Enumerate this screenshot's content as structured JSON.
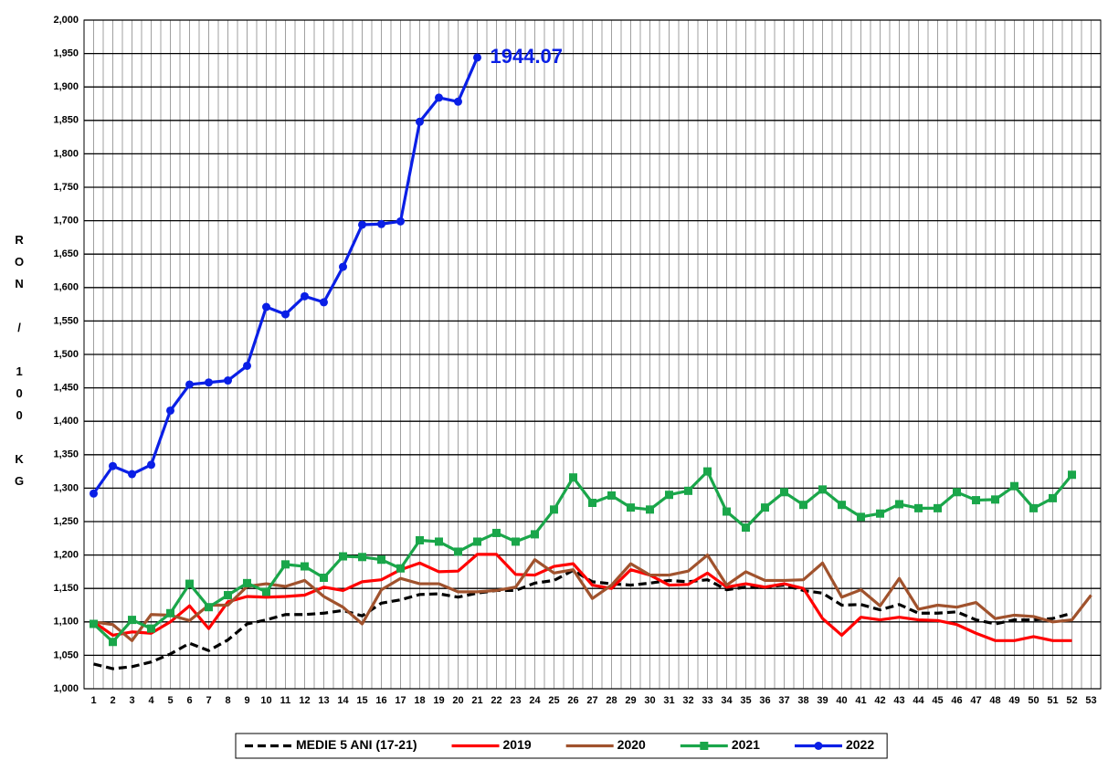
{
  "chart_data": {
    "type": "line",
    "y_label": "RON / 100 KG",
    "categories": [
      1,
      2,
      3,
      4,
      5,
      6,
      7,
      8,
      9,
      10,
      11,
      12,
      13,
      14,
      15,
      16,
      17,
      18,
      19,
      20,
      21,
      22,
      23,
      24,
      25,
      26,
      27,
      28,
      29,
      30,
      31,
      32,
      33,
      34,
      35,
      36,
      37,
      38,
      39,
      40,
      41,
      42,
      43,
      44,
      45,
      46,
      47,
      48,
      49,
      50,
      51,
      52,
      53
    ],
    "ylim": [
      1000,
      2000
    ],
    "yticks": [
      {
        "value": 1000,
        "label": "1,000"
      },
      {
        "value": 1050,
        "label": "1,050"
      },
      {
        "value": 1100,
        "label": "1,100"
      },
      {
        "value": 1150,
        "label": "1,150"
      },
      {
        "value": 1200,
        "label": "1,200"
      },
      {
        "value": 1250,
        "label": "1,250"
      },
      {
        "value": 1300,
        "label": "1,300"
      },
      {
        "value": 1350,
        "label": "1,350"
      },
      {
        "value": 1400,
        "label": "1,400"
      },
      {
        "value": 1450,
        "label": "1,450"
      },
      {
        "value": 1500,
        "label": "1,500"
      },
      {
        "value": 1550,
        "label": "1,550"
      },
      {
        "value": 1600,
        "label": "1,600"
      },
      {
        "value": 1650,
        "label": "1,650"
      },
      {
        "value": 1700,
        "label": "1,700"
      },
      {
        "value": 1750,
        "label": "1,750"
      },
      {
        "value": 1800,
        "label": "1,800"
      },
      {
        "value": 1850,
        "label": "1,850"
      },
      {
        "value": 1900,
        "label": "1,900"
      },
      {
        "value": 1950,
        "label": "1,950"
      },
      {
        "value": 2000,
        "label": "2,000"
      }
    ],
    "grid": true,
    "legend": "bottom",
    "series": [
      {
        "name": "MEDIE 5 ANI (17-21)",
        "color": "#000000",
        "dash": true,
        "marker": null,
        "values": [
          1037,
          1030,
          1033,
          1040,
          1052,
          1068,
          1057,
          1073,
          1097,
          1103,
          1111,
          1111,
          1113,
          1117,
          1109,
          1128,
          1133,
          1141,
          1142,
          1137,
          1143,
          1147,
          1147,
          1158,
          1162,
          1177,
          1160,
          1157,
          1155,
          1158,
          1162,
          1160,
          1163,
          1148,
          1152,
          1152,
          1155,
          1147,
          1143,
          1125,
          1126,
          1118,
          1126,
          1113,
          1113,
          1115,
          1103,
          1097,
          1103,
          1103,
          1105,
          1113,
          null
        ]
      },
      {
        "name": "2019",
        "color": "#ff0000",
        "dash": false,
        "marker": null,
        "values": [
          1100,
          1080,
          1085,
          1083,
          1100,
          1124,
          1090,
          1130,
          1138,
          1137,
          1138,
          1140,
          1152,
          1147,
          1160,
          1163,
          1178,
          1188,
          1175,
          1176,
          1201,
          1201,
          1171,
          1170,
          1183,
          1187,
          1155,
          1150,
          1178,
          1170,
          1155,
          1156,
          1173,
          1152,
          1157,
          1152,
          1157,
          1150,
          1105,
          1080,
          1107,
          1103,
          1107,
          1103,
          1102,
          1096,
          1083,
          1072,
          1072,
          1078,
          1072,
          1072,
          null
        ]
      },
      {
        "name": "2020",
        "color": "#a0522d",
        "dash": false,
        "marker": null,
        "values": [
          1100,
          1096,
          1072,
          1111,
          1110,
          1102,
          1125,
          1125,
          1153,
          1157,
          1153,
          1162,
          1138,
          1122,
          1097,
          1148,
          1165,
          1157,
          1157,
          1145,
          1145,
          1147,
          1152,
          1193,
          1173,
          1178,
          1135,
          1155,
          1187,
          1170,
          1170,
          1176,
          1200,
          1155,
          1175,
          1162,
          1162,
          1163,
          1188,
          1137,
          1148,
          1124,
          1165,
          1119,
          1125,
          1122,
          1129,
          1105,
          1110,
          1108,
          1100,
          1103,
          1140
        ]
      },
      {
        "name": "2021",
        "color": "#1aa64a",
        "dash": false,
        "marker": "square",
        "values": [
          1097,
          1070,
          1103,
          1090,
          1113,
          1157,
          1122,
          1140,
          1158,
          1145,
          1186,
          1183,
          1166,
          1198,
          1197,
          1193,
          1180,
          1222,
          1220,
          1205,
          1220,
          1233,
          1220,
          1231,
          1268,
          1316,
          1278,
          1289,
          1271,
          1268,
          1290,
          1296,
          1325,
          1265,
          1241,
          1271,
          1294,
          1275,
          1298,
          1275,
          1257,
          1262,
          1276,
          1270,
          1270,
          1294,
          1282,
          1283,
          1303,
          1270,
          1285,
          1320,
          null
        ]
      },
      {
        "name": "2022",
        "color": "#0a1fe6",
        "dash": false,
        "marker": "circle",
        "label_last": true,
        "values": [
          1292,
          1333,
          1321,
          1335,
          1416,
          1455,
          1458,
          1461,
          1483,
          1571,
          1560,
          1587,
          1578,
          1631,
          1694,
          1695,
          1699,
          1848,
          1884,
          1878,
          1944.07,
          null,
          null,
          null,
          null,
          null,
          null,
          null,
          null,
          null,
          null,
          null,
          null,
          null,
          null,
          null,
          null,
          null,
          null,
          null,
          null,
          null,
          null,
          null,
          null,
          null,
          null,
          null,
          null,
          null,
          null,
          null,
          null
        ]
      }
    ]
  }
}
